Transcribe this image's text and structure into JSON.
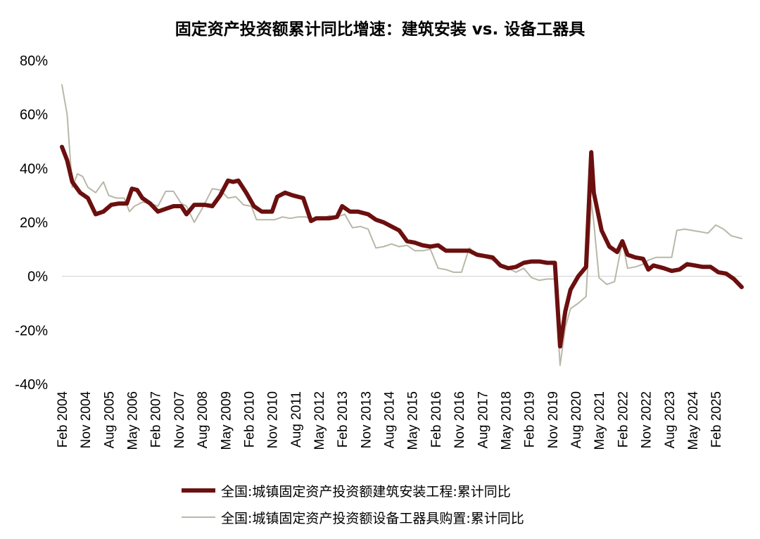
{
  "chart_data": {
    "type": "line",
    "title": "固定资产投资额累计同比增速：建筑安装 vs. 设备工器具",
    "y_ticks": [
      "80%",
      "60%",
      "40%",
      "20%",
      "0%",
      "-20%",
      "-40%"
    ],
    "ylim": [
      -40,
      80
    ],
    "x_ticks": [
      "Feb 2004",
      "Nov 2004",
      "Aug 2005",
      "May 2006",
      "Feb 2007",
      "Nov 2007",
      "Aug 2008",
      "May 2009",
      "Feb 2010",
      "Nov 2010",
      "Aug 2011",
      "May 2012",
      "Feb 2013",
      "Nov 2013",
      "Aug 2014",
      "May 2015",
      "Feb 2016",
      "Nov 2016",
      "Aug 2017",
      "May 2018",
      "Feb 2019",
      "Nov 2019",
      "Aug 2020",
      "May 2021",
      "Feb 2022",
      "Nov 2022",
      "Aug 2023",
      "May 2024",
      "Feb 2025"
    ],
    "x_range": [
      "2004-02",
      "2025-12"
    ],
    "grid": false,
    "legend_position": "bottom",
    "series": [
      {
        "name": "全国:城镇固定资产投资额建筑安装工程:累计同比",
        "color": "#6b0f0f",
        "points": [
          [
            "2004-02",
            48
          ],
          [
            "2004-04",
            43
          ],
          [
            "2004-06",
            35
          ],
          [
            "2004-09",
            31
          ],
          [
            "2004-12",
            29
          ],
          [
            "2005-03",
            23
          ],
          [
            "2005-06",
            24
          ],
          [
            "2005-09",
            26.5
          ],
          [
            "2005-12",
            27
          ],
          [
            "2006-03",
            27
          ],
          [
            "2006-05",
            32.5
          ],
          [
            "2006-07",
            32
          ],
          [
            "2006-09",
            29
          ],
          [
            "2006-12",
            27
          ],
          [
            "2007-03",
            24
          ],
          [
            "2007-06",
            25
          ],
          [
            "2007-09",
            26
          ],
          [
            "2007-12",
            26
          ],
          [
            "2008-02",
            23
          ],
          [
            "2008-05",
            26.5
          ],
          [
            "2008-09",
            26.5
          ],
          [
            "2008-12",
            26
          ],
          [
            "2009-03",
            30
          ],
          [
            "2009-06",
            35.5
          ],
          [
            "2009-08",
            35
          ],
          [
            "2009-10",
            35.5
          ],
          [
            "2010-01",
            31
          ],
          [
            "2010-04",
            26
          ],
          [
            "2010-07",
            24
          ],
          [
            "2010-11",
            24
          ],
          [
            "2011-01",
            29.5
          ],
          [
            "2011-04",
            31
          ],
          [
            "2011-07",
            30
          ],
          [
            "2011-11",
            29
          ],
          [
            "2012-02",
            20.5
          ],
          [
            "2012-04",
            21.5
          ],
          [
            "2012-09",
            21.5
          ],
          [
            "2012-12",
            22
          ],
          [
            "2013-02",
            26
          ],
          [
            "2013-05",
            24
          ],
          [
            "2013-08",
            24
          ],
          [
            "2013-12",
            23
          ],
          [
            "2014-03",
            21
          ],
          [
            "2014-06",
            20
          ],
          [
            "2014-09",
            18.5
          ],
          [
            "2014-12",
            17
          ],
          [
            "2015-03",
            13
          ],
          [
            "2015-06",
            12.5
          ],
          [
            "2015-09",
            11.5
          ],
          [
            "2015-12",
            11
          ],
          [
            "2016-03",
            11.5
          ],
          [
            "2016-06",
            9.5
          ],
          [
            "2016-09",
            9.5
          ],
          [
            "2016-12",
            9.5
          ],
          [
            "2017-03",
            9.5
          ],
          [
            "2017-06",
            8
          ],
          [
            "2017-09",
            7.5
          ],
          [
            "2017-12",
            7
          ],
          [
            "2018-03",
            4
          ],
          [
            "2018-06",
            3
          ],
          [
            "2018-09",
            3.5
          ],
          [
            "2018-12",
            5
          ],
          [
            "2019-03",
            5.5
          ],
          [
            "2019-06",
            5.5
          ],
          [
            "2019-09",
            5
          ],
          [
            "2019-12",
            5
          ],
          [
            "2020-02",
            -26
          ],
          [
            "2020-04",
            -13
          ],
          [
            "2020-06",
            -5
          ],
          [
            "2020-09",
            0
          ],
          [
            "2020-12",
            3.5
          ],
          [
            "2021-02",
            46
          ],
          [
            "2021-03",
            31
          ],
          [
            "2021-06",
            17
          ],
          [
            "2021-09",
            11
          ],
          [
            "2021-12",
            9
          ],
          [
            "2022-02",
            13
          ],
          [
            "2022-04",
            8
          ],
          [
            "2022-07",
            7
          ],
          [
            "2022-10",
            6.5
          ],
          [
            "2022-12",
            2.5
          ],
          [
            "2023-02",
            4
          ],
          [
            "2023-06",
            3
          ],
          [
            "2023-09",
            2
          ],
          [
            "2023-12",
            2.5
          ],
          [
            "2024-03",
            4.5
          ],
          [
            "2024-06",
            4
          ],
          [
            "2024-09",
            3.5
          ],
          [
            "2024-12",
            3.5
          ],
          [
            "2025-03",
            1.5
          ],
          [
            "2025-06",
            1
          ],
          [
            "2025-09",
            -1
          ],
          [
            "2025-12",
            -4
          ]
        ]
      },
      {
        "name": "全国:城镇固定资产投资额设备工器具购置:累计同比",
        "color": "#b8b8a8",
        "points": [
          [
            "2004-02",
            71
          ],
          [
            "2004-04",
            60
          ],
          [
            "2004-06",
            33
          ],
          [
            "2004-08",
            38
          ],
          [
            "2004-10",
            37
          ],
          [
            "2004-12",
            33
          ],
          [
            "2005-03",
            31
          ],
          [
            "2005-06",
            35
          ],
          [
            "2005-08",
            30
          ],
          [
            "2005-11",
            29
          ],
          [
            "2006-02",
            29
          ],
          [
            "2006-04",
            24
          ],
          [
            "2006-06",
            26
          ],
          [
            "2006-09",
            27.5
          ],
          [
            "2006-12",
            27
          ],
          [
            "2007-03",
            26
          ],
          [
            "2007-06",
            31.5
          ],
          [
            "2007-09",
            31.5
          ],
          [
            "2007-12",
            27
          ],
          [
            "2008-02",
            26
          ],
          [
            "2008-05",
            20
          ],
          [
            "2008-08",
            25
          ],
          [
            "2008-12",
            32.5
          ],
          [
            "2009-03",
            32
          ],
          [
            "2009-06",
            29
          ],
          [
            "2009-09",
            29.5
          ],
          [
            "2009-12",
            26.5
          ],
          [
            "2010-03",
            26
          ],
          [
            "2010-05",
            21
          ],
          [
            "2010-08",
            21
          ],
          [
            "2010-12",
            21
          ],
          [
            "2011-03",
            22
          ],
          [
            "2011-06",
            21.5
          ],
          [
            "2011-09",
            22
          ],
          [
            "2011-12",
            22
          ],
          [
            "2012-03",
            21
          ],
          [
            "2012-06",
            21
          ],
          [
            "2012-09",
            22.5
          ],
          [
            "2012-12",
            22
          ],
          [
            "2013-03",
            23
          ],
          [
            "2013-06",
            18
          ],
          [
            "2013-09",
            18.5
          ],
          [
            "2013-12",
            17.5
          ],
          [
            "2014-03",
            10.5
          ],
          [
            "2014-06",
            11
          ],
          [
            "2014-09",
            12
          ],
          [
            "2014-12",
            11
          ],
          [
            "2015-03",
            11.5
          ],
          [
            "2015-06",
            9.5
          ],
          [
            "2015-09",
            9.5
          ],
          [
            "2015-12",
            10
          ],
          [
            "2016-03",
            3
          ],
          [
            "2016-06",
            2.5
          ],
          [
            "2016-09",
            1.5
          ],
          [
            "2016-12",
            1.5
          ],
          [
            "2017-03",
            10.5
          ],
          [
            "2017-06",
            8
          ],
          [
            "2017-09",
            7
          ],
          [
            "2017-12",
            6
          ],
          [
            "2018-03",
            4
          ],
          [
            "2018-06",
            3
          ],
          [
            "2018-09",
            1.5
          ],
          [
            "2018-12",
            3
          ],
          [
            "2019-03",
            -0.5
          ],
          [
            "2019-06",
            -1.5
          ],
          [
            "2019-09",
            -1
          ],
          [
            "2019-12",
            -1
          ],
          [
            "2020-02",
            -33
          ],
          [
            "2020-04",
            -19
          ],
          [
            "2020-06",
            -12
          ],
          [
            "2020-09",
            -10
          ],
          [
            "2020-12",
            -7.5
          ],
          [
            "2021-02",
            28
          ],
          [
            "2021-03",
            20
          ],
          [
            "2021-05",
            -0.5
          ],
          [
            "2021-08",
            -3
          ],
          [
            "2021-11",
            -2
          ],
          [
            "2022-02",
            13
          ],
          [
            "2022-04",
            3
          ],
          [
            "2022-07",
            3.5
          ],
          [
            "2022-10",
            4.5
          ],
          [
            "2022-12",
            6
          ],
          [
            "2023-03",
            7
          ],
          [
            "2023-06",
            7
          ],
          [
            "2023-09",
            7
          ],
          [
            "2023-11",
            17
          ],
          [
            "2024-02",
            17.5
          ],
          [
            "2024-05",
            17
          ],
          [
            "2024-08",
            16.5
          ],
          [
            "2024-11",
            16
          ],
          [
            "2025-02",
            19
          ],
          [
            "2025-05",
            17.5
          ],
          [
            "2025-08",
            15
          ],
          [
            "2025-12",
            14
          ]
        ]
      }
    ]
  }
}
